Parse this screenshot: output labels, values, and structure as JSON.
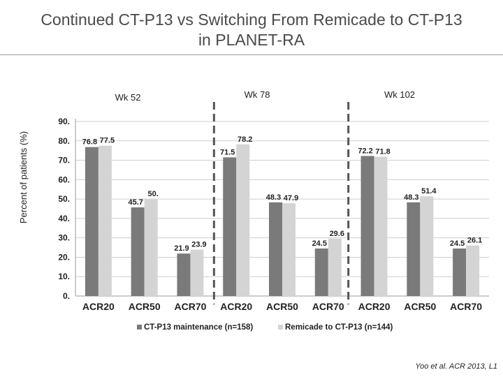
{
  "slide": {
    "title_line1": "Continued CT-P13 vs Switching From Remicade to CT-P13",
    "title_line2": "in PLANET-RA",
    "citation": "Yoo et al. ACR 2013, L1"
  },
  "colors": {
    "maintenance": "#7a7a7a",
    "switch": "#d4d4d4",
    "grid": "#cfcfcf",
    "text": "#222222",
    "divider": "#555555"
  },
  "chart_data": {
    "type": "bar",
    "ylabel": "Percent of patients (%)",
    "ylim": [
      0,
      90
    ],
    "yticks": [
      "0.",
      "10.",
      "20.",
      "30.",
      "40.",
      "50.",
      "60.",
      "70.",
      "80.",
      "90."
    ],
    "grid": true,
    "legend_position": "bottom",
    "periods": [
      "Wk 52",
      "Wk 78",
      "Wk 102"
    ],
    "categories": [
      "ACR20",
      "ACR50",
      "ACR70",
      "ACR20",
      "ACR50",
      "ACR70",
      "ACR20",
      "ACR50",
      "ACR70"
    ],
    "series": [
      {
        "name": "CT-P13 maintenance (n=158)",
        "values": [
          76.8,
          45.7,
          21.9,
          71.5,
          48.3,
          24.5,
          72.2,
          48.3,
          24.5
        ],
        "labels": [
          "76.8",
          "45.7",
          "21.9",
          "71.5",
          "48.3",
          "24.5",
          "72.2",
          "48.3",
          "24.5"
        ]
      },
      {
        "name": "Remicade to CT-P13 (n=144)",
        "values": [
          77.5,
          50.0,
          23.9,
          78.2,
          47.9,
          29.6,
          71.8,
          51.4,
          26.1
        ],
        "labels": [
          "77.5",
          "50.",
          "23.9",
          "78.2",
          "47.9",
          "29.6",
          "71.8",
          "51.4",
          "26.1"
        ]
      }
    ]
  }
}
